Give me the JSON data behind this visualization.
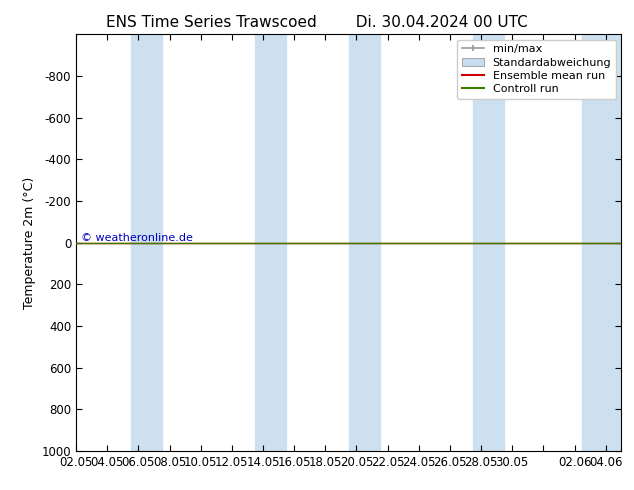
{
  "title_left": "ENS Time Series Trawscoed",
  "title_right": "Di. 30.04.2024 00 UTC",
  "ylabel": "Temperature 2m (°C)",
  "ylim_bottom": 1000,
  "ylim_top": -1000,
  "yticks": [
    -800,
    -600,
    -400,
    -200,
    0,
    200,
    400,
    600,
    800,
    1000
  ],
  "xlim_start": 0,
  "xlim_end": 35,
  "xtick_labels": [
    "02.05",
    "04.05",
    "06.05",
    "08.05",
    "10.05",
    "12.05",
    "14.05",
    "16.05",
    "18.05",
    "20.05",
    "22.05",
    "24.05",
    "26.05",
    "28.05",
    "30.05",
    "",
    "02.06",
    "04.06"
  ],
  "xtick_positions": [
    0,
    2,
    4,
    6,
    8,
    10,
    12,
    14,
    16,
    18,
    20,
    22,
    24,
    26,
    28,
    30,
    32,
    34
  ],
  "blue_bands": [
    [
      3.5,
      5.5
    ],
    [
      11.5,
      13.5
    ],
    [
      17.5,
      19.5
    ],
    [
      25.5,
      27.5
    ],
    [
      32.5,
      35
    ]
  ],
  "blue_band_color": "#cce0f0",
  "background_color": "#ffffff",
  "plot_bg_color": "#ffffff",
  "green_line_color": "#3a7d00",
  "red_line_color": "#cc0000",
  "minmax_color": "#999999",
  "stdabw_color": "#c8ddf0",
  "legend_labels": [
    "min/max",
    "Standardabweichung",
    "Ensemble mean run",
    "Controll run"
  ],
  "copyright_text": "© weatheronline.de",
  "copyright_color": "#0000bb",
  "title_fontsize": 11,
  "axis_fontsize": 9,
  "tick_fontsize": 8.5,
  "legend_fontsize": 8
}
